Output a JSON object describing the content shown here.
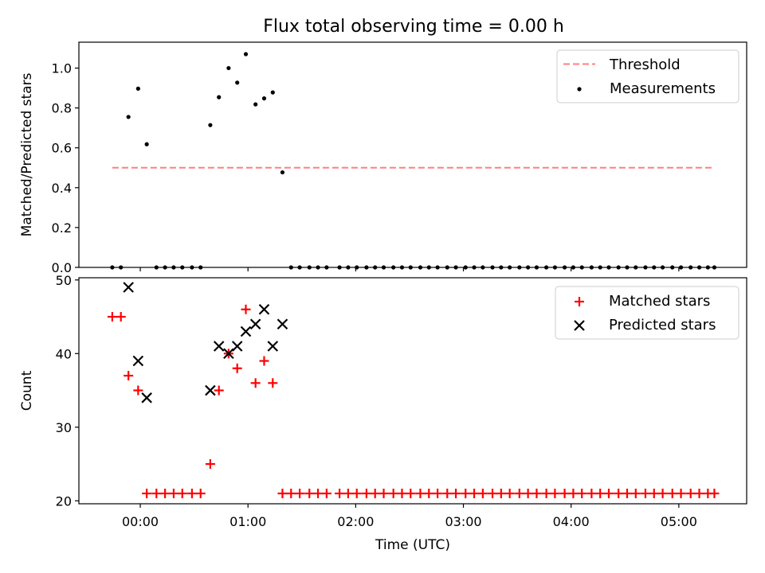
{
  "chart_data": [
    {
      "type": "scatter",
      "title": "Flux total observing time = 0.00 h",
      "xlabel": "",
      "ylabel": "Matched/Predicted stars",
      "xlim": [
        -0.57,
        5.63
      ],
      "ylim": [
        0.0,
        1.13
      ],
      "yticks": [
        {
          "value": 0.0,
          "label": "0.0"
        },
        {
          "value": 0.2,
          "label": "0.2"
        },
        {
          "value": 0.4,
          "label": "0.4"
        },
        {
          "value": 0.6,
          "label": "0.6"
        },
        {
          "value": 0.8,
          "label": "0.8"
        },
        {
          "value": 1.0,
          "label": "1.0"
        }
      ],
      "legend": {
        "position": "upper right",
        "entries": [
          {
            "label": "Threshold",
            "marker": "dashed-line",
            "color": "#ff7f7f"
          },
          {
            "label": "Measurements",
            "marker": "dot",
            "color": "#000000"
          }
        ]
      },
      "threshold": {
        "name": "Threshold",
        "y": 0.5,
        "x": [
          -0.26,
          5.33
        ],
        "color": "#ff7f7f"
      },
      "series": [
        {
          "name": "Measurements",
          "color": "#000000",
          "points": [
            [
              -0.26,
              0.0
            ],
            [
              -0.18,
              0.0
            ],
            [
              -0.11,
              0.755
            ],
            [
              -0.02,
              0.897
            ],
            [
              0.06,
              0.618
            ],
            [
              0.15,
              0.0
            ],
            [
              0.23,
              0.0
            ],
            [
              0.31,
              0.0
            ],
            [
              0.39,
              0.0
            ],
            [
              0.48,
              0.0
            ],
            [
              0.56,
              0.0
            ],
            [
              0.65,
              0.714
            ],
            [
              0.73,
              0.854
            ],
            [
              0.82,
              1.0
            ],
            [
              0.9,
              0.927
            ],
            [
              0.98,
              1.07
            ],
            [
              1.07,
              0.818
            ],
            [
              1.15,
              0.848
            ],
            [
              1.23,
              0.878
            ],
            [
              1.32,
              0.477
            ],
            [
              1.4,
              0.0
            ],
            [
              1.48,
              0.0
            ],
            [
              1.57,
              0.0
            ],
            [
              1.65,
              0.0
            ],
            [
              1.73,
              0.0
            ],
            [
              1.85,
              0.0
            ],
            [
              1.93,
              0.0
            ],
            [
              2.01,
              0.0
            ],
            [
              2.1,
              0.0
            ],
            [
              2.18,
              0.0
            ],
            [
              2.26,
              0.0
            ],
            [
              2.35,
              0.0
            ],
            [
              2.43,
              0.0
            ],
            [
              2.51,
              0.0
            ],
            [
              2.6,
              0.0
            ],
            [
              2.68,
              0.0
            ],
            [
              2.76,
              0.0
            ],
            [
              2.85,
              0.0
            ],
            [
              2.93,
              0.0
            ],
            [
              3.02,
              0.0
            ],
            [
              3.1,
              0.0
            ],
            [
              3.18,
              0.0
            ],
            [
              3.27,
              0.0
            ],
            [
              3.35,
              0.0
            ],
            [
              3.43,
              0.0
            ],
            [
              3.52,
              0.0
            ],
            [
              3.6,
              0.0
            ],
            [
              3.68,
              0.0
            ],
            [
              3.77,
              0.0
            ],
            [
              3.85,
              0.0
            ],
            [
              3.94,
              0.0
            ],
            [
              4.02,
              0.0
            ],
            [
              4.1,
              0.0
            ],
            [
              4.19,
              0.0
            ],
            [
              4.27,
              0.0
            ],
            [
              4.35,
              0.0
            ],
            [
              4.44,
              0.0
            ],
            [
              4.52,
              0.0
            ],
            [
              4.6,
              0.0
            ],
            [
              4.69,
              0.0
            ],
            [
              4.77,
              0.0
            ],
            [
              4.85,
              0.0
            ],
            [
              4.94,
              0.0
            ],
            [
              5.02,
              0.0
            ],
            [
              5.11,
              0.0
            ],
            [
              5.19,
              0.0
            ],
            [
              5.27,
              0.0
            ],
            [
              5.33,
              0.0
            ]
          ]
        }
      ]
    },
    {
      "type": "scatter",
      "title": "",
      "xlabel": "Time (UTC)",
      "ylabel": "Count",
      "xlim": [
        -0.57,
        5.63
      ],
      "ylim": [
        19.6,
        50.3
      ],
      "xticks": [
        {
          "value": 0,
          "label": "00:00"
        },
        {
          "value": 1,
          "label": "01:00"
        },
        {
          "value": 2,
          "label": "02:00"
        },
        {
          "value": 3,
          "label": "03:00"
        },
        {
          "value": 4,
          "label": "04:00"
        },
        {
          "value": 5,
          "label": "05:00"
        }
      ],
      "yticks": [
        {
          "value": 20,
          "label": "20"
        },
        {
          "value": 30,
          "label": "30"
        },
        {
          "value": 40,
          "label": "40"
        },
        {
          "value": 50,
          "label": "50"
        }
      ],
      "legend": {
        "position": "upper right",
        "entries": [
          {
            "label": "Matched stars",
            "marker": "plus",
            "color": "#ff0000"
          },
          {
            "label": "Predicted stars",
            "marker": "x",
            "color": "#000000"
          }
        ]
      },
      "series": [
        {
          "name": "Matched stars",
          "marker": "plus",
          "color": "#ff0000",
          "points": [
            [
              -0.26,
              45
            ],
            [
              -0.18,
              45
            ],
            [
              -0.11,
              37
            ],
            [
              -0.02,
              35
            ],
            [
              0.06,
              21
            ],
            [
              0.15,
              21
            ],
            [
              0.23,
              21
            ],
            [
              0.31,
              21
            ],
            [
              0.39,
              21
            ],
            [
              0.48,
              21
            ],
            [
              0.56,
              21
            ],
            [
              0.65,
              25
            ],
            [
              0.73,
              35
            ],
            [
              0.82,
              40
            ],
            [
              0.9,
              38
            ],
            [
              0.98,
              46
            ],
            [
              1.07,
              36
            ],
            [
              1.15,
              39
            ],
            [
              1.23,
              36
            ],
            [
              1.32,
              21
            ],
            [
              1.4,
              21
            ],
            [
              1.48,
              21
            ],
            [
              1.57,
              21
            ],
            [
              1.65,
              21
            ],
            [
              1.73,
              21
            ],
            [
              1.85,
              21
            ],
            [
              1.93,
              21
            ],
            [
              2.01,
              21
            ],
            [
              2.1,
              21
            ],
            [
              2.18,
              21
            ],
            [
              2.26,
              21
            ],
            [
              2.35,
              21
            ],
            [
              2.43,
              21
            ],
            [
              2.51,
              21
            ],
            [
              2.6,
              21
            ],
            [
              2.68,
              21
            ],
            [
              2.76,
              21
            ],
            [
              2.85,
              21
            ],
            [
              2.93,
              21
            ],
            [
              3.02,
              21
            ],
            [
              3.1,
              21
            ],
            [
              3.18,
              21
            ],
            [
              3.27,
              21
            ],
            [
              3.35,
              21
            ],
            [
              3.43,
              21
            ],
            [
              3.52,
              21
            ],
            [
              3.6,
              21
            ],
            [
              3.68,
              21
            ],
            [
              3.77,
              21
            ],
            [
              3.85,
              21
            ],
            [
              3.94,
              21
            ],
            [
              4.02,
              21
            ],
            [
              4.1,
              21
            ],
            [
              4.19,
              21
            ],
            [
              4.27,
              21
            ],
            [
              4.35,
              21
            ],
            [
              4.44,
              21
            ],
            [
              4.52,
              21
            ],
            [
              4.6,
              21
            ],
            [
              4.69,
              21
            ],
            [
              4.77,
              21
            ],
            [
              4.85,
              21
            ],
            [
              4.94,
              21
            ],
            [
              5.02,
              21
            ],
            [
              5.11,
              21
            ],
            [
              5.19,
              21
            ],
            [
              5.27,
              21
            ],
            [
              5.33,
              21
            ]
          ]
        },
        {
          "name": "Predicted stars",
          "marker": "x",
          "color": "#000000",
          "points": [
            [
              -0.11,
              49
            ],
            [
              -0.02,
              39
            ],
            [
              0.06,
              34
            ],
            [
              0.65,
              35
            ],
            [
              0.73,
              41
            ],
            [
              0.82,
              40
            ],
            [
              0.9,
              41
            ],
            [
              0.98,
              43
            ],
            [
              1.07,
              44
            ],
            [
              1.15,
              46
            ],
            [
              1.23,
              41
            ],
            [
              1.32,
              44
            ]
          ]
        }
      ]
    }
  ]
}
